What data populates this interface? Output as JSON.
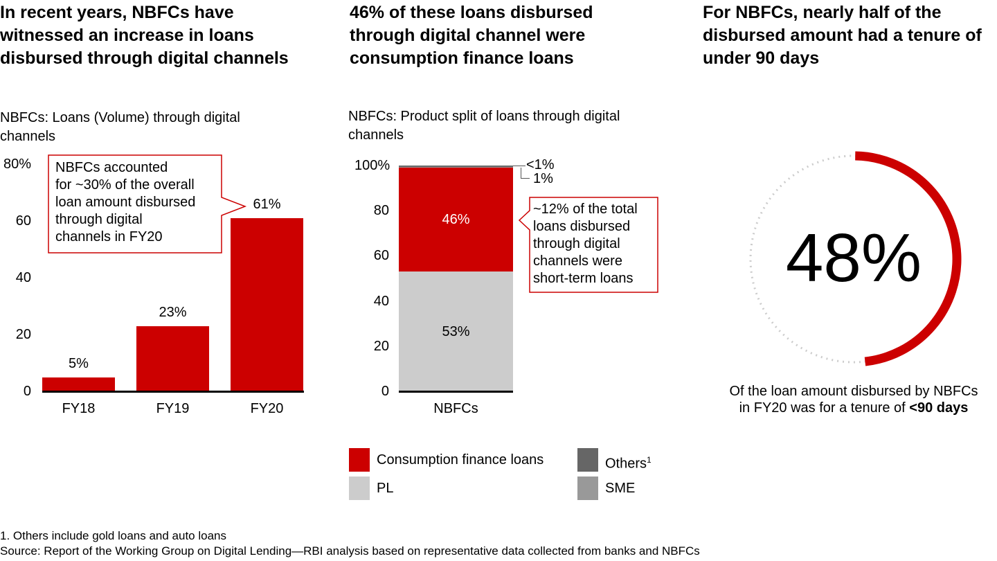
{
  "panel1": {
    "headline": "In recent years, NBFCs have witnessed an increase in loans disbursed through digital channels",
    "subtitle": "NBFCs: Loans (Volume) through digital channels",
    "callout": "NBFCs accounted\nfor ~30% of the overall\nloan amount disbursed\nthrough digital\nchannels in FY20"
  },
  "panel2": {
    "headline": "46% of these loans disbursed through digital channel were consumption finance loans",
    "subtitle": "NBFCs: Product split of loans through digital channels",
    "callout": "~12% of the total\nloans disbursed\nthrough digital\nchannels were\nshort-term loans",
    "legend": [
      {
        "label": "Consumption finance loans",
        "color": "#cc0000"
      },
      {
        "label": "Others",
        "sup": "1",
        "color": "#666666"
      },
      {
        "label": "PL",
        "color": "#cccccc"
      },
      {
        "label": "SME",
        "color": "#999999"
      }
    ]
  },
  "panel3": {
    "headline": "For NBFCs, nearly half of the disbursed amount had a tenure of under 90 days",
    "stat": "48%",
    "caption_line1": "Of the loan amount disbursed by NBFCs",
    "caption_line2_prefix": "in FY20 was for a tenure of ",
    "caption_line2_bold": "<90 days",
    "colors": {
      "arc": "#cc0000",
      "track": "#cccccc"
    }
  },
  "footnotes": {
    "note1": "1. Others include gold loans and auto loans",
    "source": "Source: Report of the Working Group on Digital Lending—RBI analysis based on representative data collected from banks and NBFCs"
  },
  "chart_data": [
    {
      "type": "bar",
      "title": "NBFCs: Loans (Volume) through digital channels",
      "categories": [
        "FY18",
        "FY19",
        "FY20"
      ],
      "values": [
        5,
        23,
        61
      ],
      "value_labels": [
        "5%",
        "23%",
        "61%"
      ],
      "ylim": [
        0,
        80
      ],
      "yticks": [
        "0",
        "20",
        "40",
        "60",
        "80%"
      ],
      "ytick_values": [
        0,
        20,
        40,
        60,
        80
      ],
      "color": "#cc0000",
      "grid": false
    },
    {
      "type": "bar",
      "stacked": true,
      "title": "NBFCs: Product split of loans through digital channels",
      "categories": [
        "NBFCs"
      ],
      "series": [
        {
          "name": "PL",
          "values": [
            53
          ],
          "label": "53%",
          "color": "#cccccc"
        },
        {
          "name": "Consumption finance loans",
          "values": [
            46
          ],
          "label": "46%",
          "color": "#cc0000"
        },
        {
          "name": "SME",
          "values": [
            1
          ],
          "label": "1%",
          "color": "#999999"
        },
        {
          "name": "Others",
          "values": [
            0.5
          ],
          "label": "<1%",
          "color": "#666666"
        }
      ],
      "ylim": [
        0,
        100
      ],
      "yticks": [
        "0",
        "20",
        "40",
        "60",
        "80",
        "100%"
      ],
      "ytick_values": [
        0,
        20,
        40,
        60,
        80,
        100
      ],
      "legend_position": "bottom",
      "grid": false
    },
    {
      "type": "pie",
      "style": "donut-arc",
      "values": [
        48,
        52
      ],
      "labels": [
        "<90 days",
        "other"
      ],
      "center_label": "48%"
    }
  ]
}
